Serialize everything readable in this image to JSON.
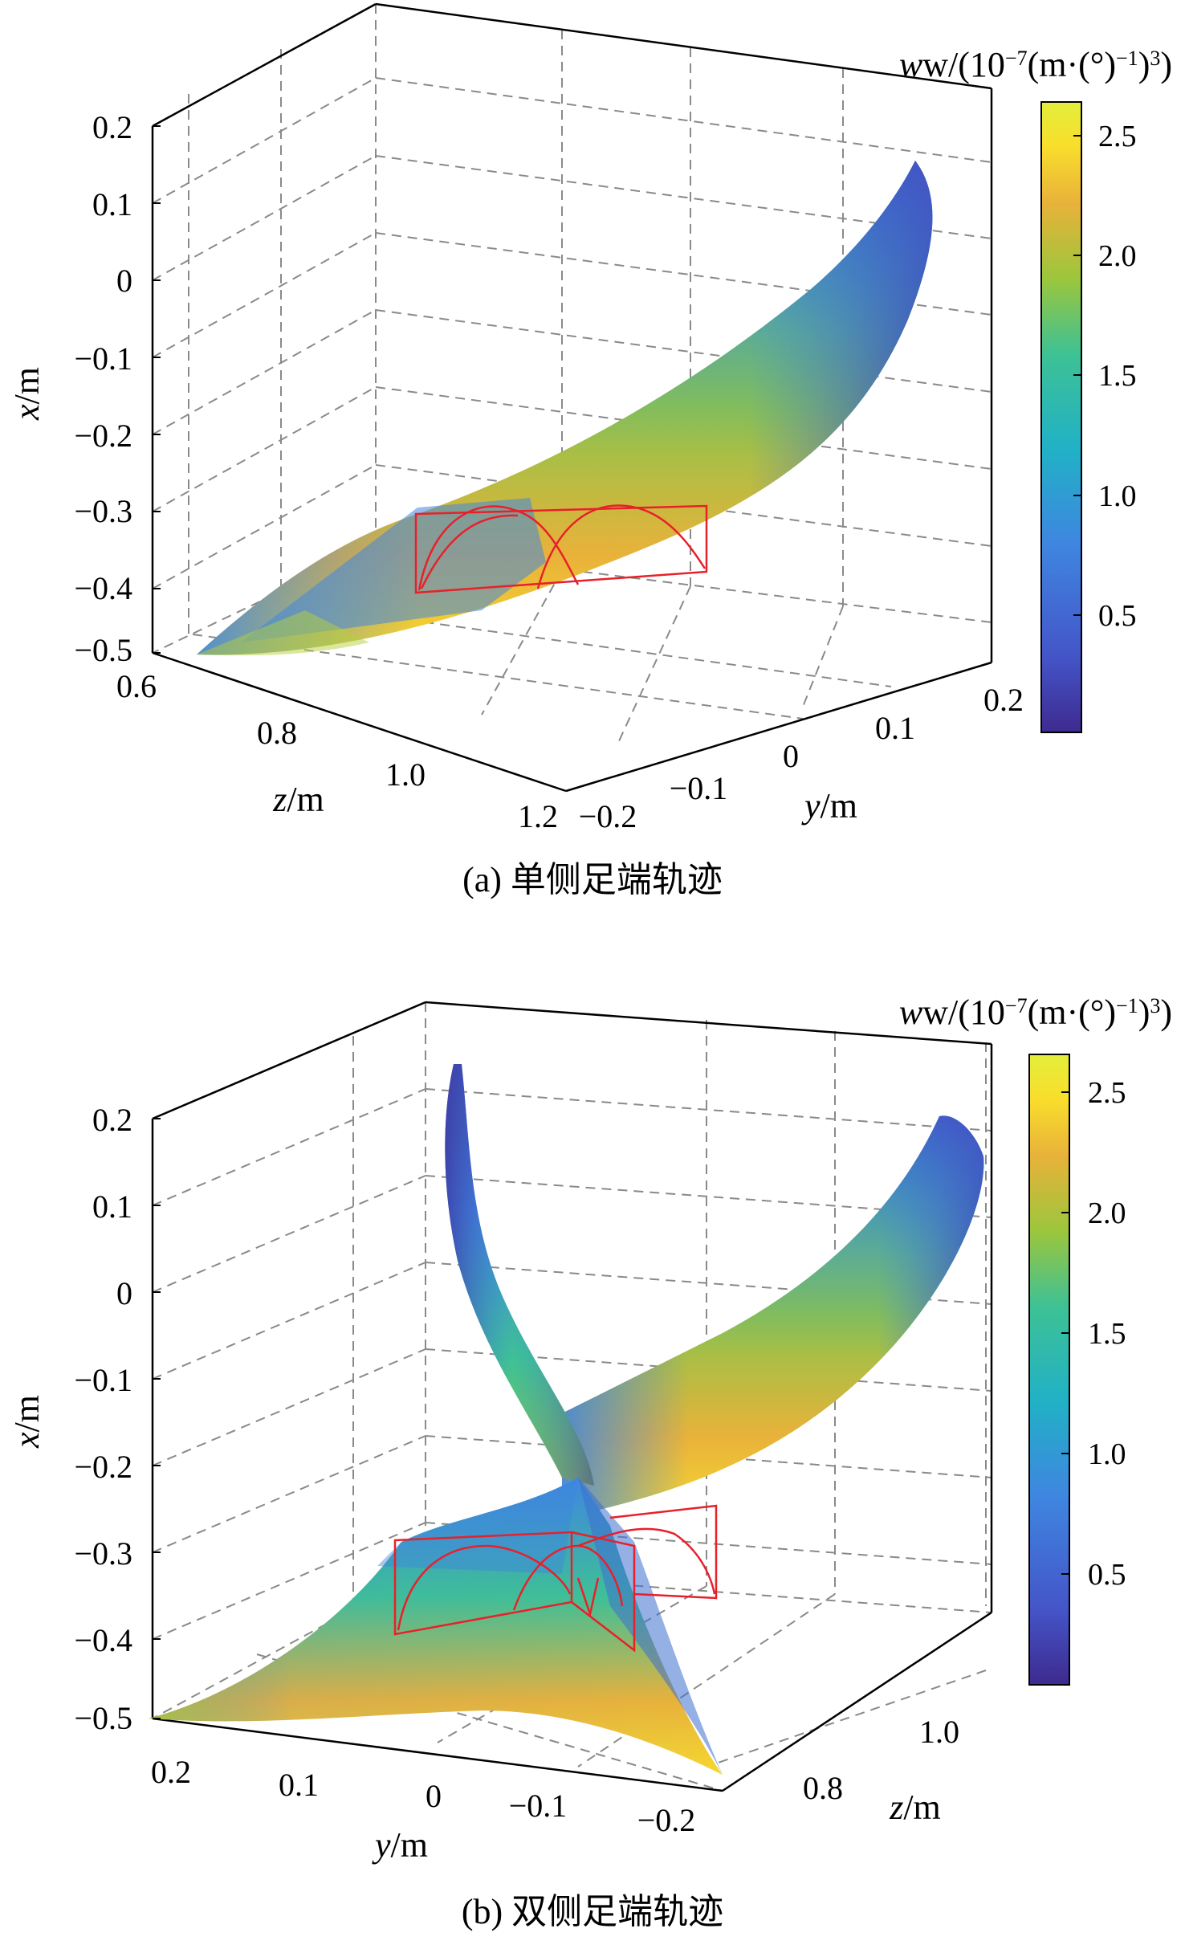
{
  "colors": {
    "grid": "#8a8a8a",
    "frame": "#000000",
    "rect": "#e8202a",
    "colormap": [
      "#3e2a8f",
      "#4455c8",
      "#3f86e0",
      "#21b1c6",
      "#3ec195",
      "#9cc63c",
      "#e9b23a",
      "#f9de2c",
      "#e3ef3b"
    ]
  },
  "figures": [
    {
      "caption": "(a) 单侧足端轨迹",
      "colorbar": {
        "title_prefix": "w/(10",
        "title_exp": "−7",
        "title_mid": "(m·(°)",
        "title_exp2": "−1",
        "title_suffix": ")",
        "title_exp3": "3",
        "title_end": ")",
        "ticks": [
          "2.5",
          "2.0",
          "1.5",
          "1.0",
          "0.5"
        ]
      },
      "xaxis": {
        "label_var": "x",
        "label_unit": "/m",
        "ticks": [
          "0.2",
          "0.1",
          "0",
          "−0.1",
          "−0.2",
          "−0.3",
          "−0.4",
          "−0.5"
        ]
      },
      "zaxis": {
        "label_var": "z",
        "label_unit": "/m",
        "ticks": [
          "0.6",
          "0.8",
          "1.0",
          "1.2"
        ]
      },
      "yaxis": {
        "label_var": "y",
        "label_unit": "/m",
        "ticks": [
          "−0.2",
          "−0.1",
          "0",
          "0.1",
          "0.2"
        ]
      }
    },
    {
      "caption": "(b) 双侧足端轨迹",
      "colorbar": {
        "title_prefix": "w/(10",
        "title_exp": "−7",
        "title_mid": "(m·(°)",
        "title_exp2": "−1",
        "title_suffix": ")",
        "title_exp3": "3",
        "title_end": ")",
        "ticks": [
          "2.5",
          "2.0",
          "1.5",
          "1.0",
          "0.5"
        ]
      },
      "xaxis": {
        "label_var": "x",
        "label_unit": "/m",
        "ticks": [
          "0.2",
          "0.1",
          "0",
          "−0.1",
          "−0.2",
          "−0.3",
          "−0.4",
          "−0.5"
        ]
      },
      "yaxis": {
        "label_var": "y",
        "label_unit": "/m",
        "ticks": [
          "0.2",
          "0.1",
          "0",
          "−0.1",
          "−0.2"
        ]
      },
      "zaxis": {
        "label_var": "z",
        "label_unit": "/m",
        "ticks": [
          "0.8",
          "1.0"
        ]
      }
    }
  ],
  "chart_data": [
    {
      "type": "scatter",
      "subtype": "3d-surface-workspace",
      "title": "(a) 单侧足端轨迹",
      "xlabel": "z/m",
      "ylabel": "y/m",
      "zlabel": "x/m",
      "x_axis_range": [
        -0.5,
        0.2
      ],
      "z_axis_range": [
        0.6,
        1.2
      ],
      "y_axis_range": [
        -0.2,
        0.2
      ],
      "color_variable": "w/(10^-7(m·(°)^-1)^3)",
      "color_range": [
        0.05,
        2.65
      ],
      "colorbar_ticks": [
        0.5,
        1.0,
        1.5,
        2.0,
        2.5
      ],
      "colormap": "parula",
      "grid": true,
      "series": [
        {
          "name": "",
          "description_of_shape": "single crescent workspace surface",
          "x_range": [
            -0.5,
            0.15
          ],
          "w_range": [
            0.05,
            2.6
          ]
        }
      ]
    },
    {
      "type": "scatter",
      "subtype": "3d-surface-workspace",
      "title": "(b) 双侧足端轨迹",
      "xlabel": "y/m",
      "ylabel": "z/m",
      "zlabel": "x/m",
      "x_axis_range": [
        -0.5,
        0.2
      ],
      "y_axis_range": [
        -0.2,
        0.2
      ],
      "z_axis_range": [
        0.8,
        1.0
      ],
      "color_variable": "w/(10^-7(m·(°)^-1)^3)",
      "color_range": [
        0.05,
        2.65
      ],
      "colorbar_ticks": [
        0.5,
        1.0,
        1.5,
        2.0,
        2.5
      ],
      "colormap": "parula",
      "grid": true,
      "series": [
        {
          "name": "",
          "x_range": [
            -0.5,
            0.13
          ],
          "w_range": [
            0.05,
            2.6
          ]
        },
        {
          "name": "",
          "x_range": [
            -0.5,
            0.15
          ],
          "w_range": [
            0.05,
            2.6
          ]
        }
      ]
    }
  ]
}
